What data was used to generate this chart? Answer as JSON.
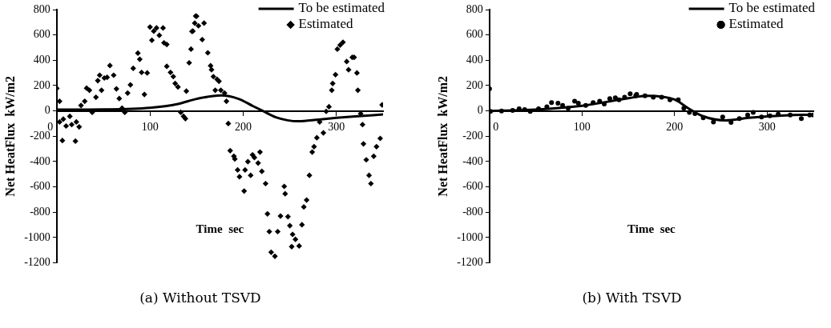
{
  "chart_data": [
    {
      "type": "scatter",
      "xlabel": "Time  sec",
      "ylabel": "Net HeatFlux  kW/m2",
      "annotations": [
        "(a) Without TSVD"
      ],
      "xlim": [
        0,
        350
      ],
      "xticks": [
        0,
        100,
        200,
        300
      ],
      "ylim": [
        -1200,
        800
      ],
      "yticks": [
        -1200,
        -1000,
        -800,
        -600,
        -400,
        -200,
        0,
        200,
        400,
        600,
        800
      ],
      "grid": false,
      "legend": "top right",
      "series": [
        {
          "name": "To be estimated",
          "type": "line",
          "color": "#000000",
          "marker": "none",
          "x": [
            0,
            50,
            100,
            130,
            150,
            176,
            195,
            210,
            221,
            235,
            259,
            281,
            300,
            320,
            350
          ],
          "values": [
            10,
            12,
            25,
            55,
            95,
            122,
            95,
            40,
            0,
            -50,
            -82,
            -68,
            -55,
            -43,
            -28
          ]
        },
        {
          "name": "Estimated",
          "type": "scatter",
          "color": "#000000",
          "marker": "diamond",
          "x": [
            0,
            3,
            3,
            6,
            7,
            10,
            14,
            16,
            20,
            21,
            24,
            26,
            30,
            32,
            35,
            38,
            42,
            44,
            46,
            48,
            51,
            54,
            57,
            61,
            64,
            67,
            70,
            73,
            76,
            79,
            82,
            87,
            89,
            91,
            94,
            97,
            100,
            102,
            104,
            107,
            110,
            114,
            115,
            118,
            118,
            122,
            125,
            127,
            130,
            133,
            136,
            138,
            139,
            142,
            144,
            145,
            146,
            148,
            149,
            150,
            152,
            156,
            158,
            162,
            165,
            166,
            168,
            170,
            172,
            174,
            176,
            180,
            182,
            184,
            186,
            190,
            191,
            194,
            196,
            201,
            202,
            205,
            208,
            210,
            212,
            216,
            218,
            220,
            224,
            226,
            228,
            230,
            234,
            237,
            240,
            244,
            245,
            248,
            250,
            252,
            253,
            256,
            260,
            263,
            265,
            268,
            271,
            274,
            276,
            279,
            282,
            286,
            289,
            292,
            295,
            296,
            299,
            301,
            304,
            307,
            311,
            313,
            317,
            319,
            322,
            323,
            326,
            328,
            329,
            332,
            335,
            337,
            340,
            343,
            347,
            349
          ],
          "values": [
            178,
            76,
            -87,
            -234,
            -65,
            -119,
            -43,
            -108,
            -239,
            -87,
            -126,
            43,
            76,
            180,
            163,
            -11,
            108,
            239,
            282,
            163,
            260,
            265,
            358,
            282,
            174,
            98,
            22,
            -11,
            141,
            206,
            336,
            456,
            408,
            304,
            130,
            300,
            662,
            558,
            630,
            655,
            597,
            655,
            538,
            525,
            352,
            304,
            271,
            217,
            189,
            -11,
            -43,
            -61,
            156,
            380,
            488,
            628,
            630,
            693,
            749,
            748,
            672,
            563,
            693,
            459,
            357,
            325,
            271,
            163,
            249,
            234,
            163,
            141,
            76,
            -100,
            -314,
            -358,
            -379,
            -466,
            -520,
            -633,
            -466,
            -401,
            -509,
            -347,
            -368,
            -412,
            -325,
            -477,
            -574,
            -813,
            -953,
            -1116,
            -1148,
            -953,
            -830,
            -596,
            -654,
            -835,
            -906,
            -1072,
            -975,
            -1014,
            -1066,
            -899,
            -758,
            -704,
            -509,
            -325,
            -282,
            -212,
            -87,
            -173,
            -4,
            33,
            163,
            217,
            286,
            488,
            520,
            542,
            390,
            325,
            423,
            423,
            300,
            163,
            -22,
            -108,
            -260,
            -386,
            -509,
            -574,
            -358,
            -282,
            -217,
            48
          ]
        }
      ]
    },
    {
      "type": "scatter",
      "xlabel": "Time  sec",
      "ylabel": "Net HeatFlux  kW/m2",
      "annotations": [
        "(b) With TSVD"
      ],
      "xlim": [
        0,
        350
      ],
      "xticks": [
        0,
        100,
        200,
        300
      ],
      "ylim": [
        -1200,
        800
      ],
      "yticks": [
        -1200,
        -1000,
        -800,
        -600,
        -400,
        -200,
        0,
        200,
        400,
        600,
        800
      ],
      "grid": false,
      "legend": "top right",
      "series": [
        {
          "name": "To be estimated",
          "type": "line",
          "color": "#000000",
          "marker": "none",
          "x": [
            0,
            50,
            100,
            150,
            170,
            200,
            215,
            230,
            255,
            280,
            320,
            350
          ],
          "values": [
            0,
            10,
            40,
            100,
            120,
            90,
            20,
            -40,
            -75,
            -55,
            -35,
            -30
          ]
        },
        {
          "name": "Estimated",
          "type": "scatter",
          "color": "#000000",
          "marker": "circle",
          "x": [
            0,
            1,
            13,
            25,
            32,
            38,
            44,
            53,
            62,
            67,
            74,
            79,
            85,
            92,
            96,
            104,
            112,
            119,
            124,
            130,
            136,
            140,
            146,
            152,
            158,
            159,
            168,
            177,
            186,
            195,
            204,
            210,
            216,
            222,
            231,
            242,
            252,
            261,
            270,
            279,
            285,
            294,
            303,
            312,
            325,
            337,
            346,
            350
          ],
          "values": [
            174,
            -4,
            0,
            4,
            17,
            11,
            -4,
            17,
            33,
            65,
            61,
            43,
            22,
            76,
            61,
            43,
            65,
            76,
            54,
            98,
            104,
            87,
            109,
            135,
            119,
            130,
            119,
            109,
            109,
            87,
            87,
            22,
            -11,
            -22,
            -54,
            -87,
            -48,
            -91,
            -61,
            -33,
            -11,
            -48,
            -39,
            -26,
            -33,
            -61,
            -33,
            -33
          ]
        }
      ]
    }
  ]
}
